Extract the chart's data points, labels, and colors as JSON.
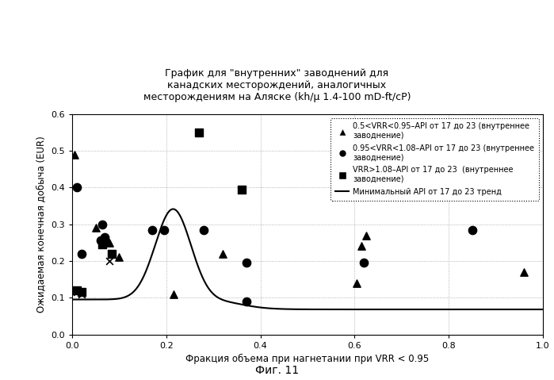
{
  "title": "График для \"внутренних\" заводнений для\nканадских месторождений, аналогичных\nместорождениям на Аляске (kh/μ 1.4-100 mD-ft/cP)",
  "xlabel": "Фракция объема при нагнетании при VRR < 0.95",
  "ylabel": "Ожидаемая конечная добыча (EUR)",
  "xlim": [
    0.0,
    1.0
  ],
  "ylim": [
    0.0,
    0.6
  ],
  "xticks": [
    0.0,
    0.2,
    0.4,
    0.6,
    0.8,
    1.0
  ],
  "yticks": [
    0.0,
    0.1,
    0.2,
    0.3,
    0.4,
    0.5,
    0.6
  ],
  "fig_caption": "Фиг. 11",
  "triangle_points": [
    [
      0.005,
      0.49
    ],
    [
      0.05,
      0.29
    ],
    [
      0.08,
      0.25
    ],
    [
      0.1,
      0.21
    ],
    [
      0.215,
      0.11
    ],
    [
      0.32,
      0.22
    ],
    [
      0.605,
      0.14
    ],
    [
      0.615,
      0.24
    ],
    [
      0.625,
      0.27
    ],
    [
      0.96,
      0.17
    ]
  ],
  "circle_points": [
    [
      0.01,
      0.4
    ],
    [
      0.02,
      0.22
    ],
    [
      0.06,
      0.255
    ],
    [
      0.065,
      0.3
    ],
    [
      0.07,
      0.265
    ],
    [
      0.17,
      0.285
    ],
    [
      0.195,
      0.285
    ],
    [
      0.28,
      0.285
    ],
    [
      0.37,
      0.195
    ],
    [
      0.62,
      0.195
    ],
    [
      0.37,
      0.09
    ],
    [
      0.85,
      0.285
    ]
  ],
  "square_points": [
    [
      0.01,
      0.12
    ],
    [
      0.02,
      0.115
    ],
    [
      0.065,
      0.245
    ],
    [
      0.07,
      0.255
    ],
    [
      0.085,
      0.22
    ],
    [
      0.27,
      0.55
    ],
    [
      0.36,
      0.395
    ]
  ],
  "xmark_points": [
    [
      0.01,
      0.115
    ],
    [
      0.02,
      0.11
    ],
    [
      0.08,
      0.2
    ]
  ],
  "legend_label1_bold": "0.5<VRR<0.95–",
  "legend_label1_rest": "API от 17 до 23 (внутреннее\nзаводнение)",
  "legend_label2_bold": "0.95<VRR<1.08–",
  "legend_label2_rest": "API от 17 до 23 (внутреннее\nзаводнение)",
  "legend_label3_bold": "VRR>1.08–",
  "legend_label3_rest": "API от 17 до 23  (внутреннее\nзаводнение)",
  "legend_label4": "Минимальный API от 17 до 23 тренд",
  "grid_color": "#888888",
  "bg_color": "#ffffff",
  "curve_color": "#000000"
}
